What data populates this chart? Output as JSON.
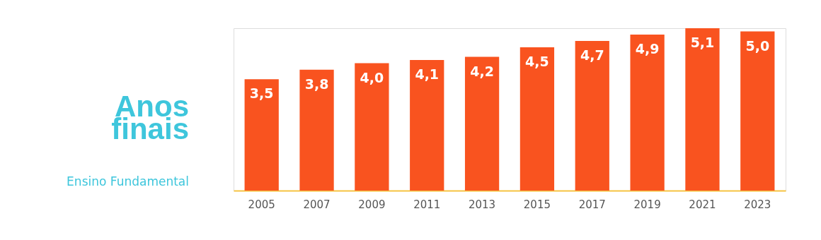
{
  "chart_data": {
    "type": "bar",
    "title": "Anos finais",
    "subtitle": "Ensino Fundamental",
    "categories": [
      "2005",
      "2007",
      "2009",
      "2011",
      "2013",
      "2015",
      "2017",
      "2019",
      "2021",
      "2023"
    ],
    "values": [
      3.5,
      3.8,
      4.0,
      4.1,
      4.2,
      4.5,
      4.7,
      4.9,
      5.1,
      5.0
    ],
    "value_labels": [
      "3,5",
      "3,8",
      "4,0",
      "4,1",
      "4,2",
      "4,5",
      "4,7",
      "4,9",
      "5,1",
      "5,0"
    ],
    "color": "#f9531f",
    "ylim": [
      0,
      5.1
    ],
    "tick_labels": "x",
    "grid": false
  }
}
